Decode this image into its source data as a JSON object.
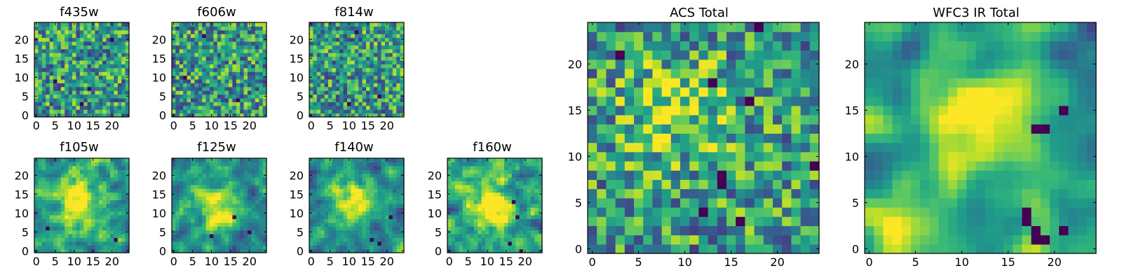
{
  "figure": {
    "colormap": "viridis",
    "background": "#ffffff",
    "frame_color": "#000000"
  },
  "chart_data": [
    {
      "type": "heatmap",
      "name": "f435w",
      "title": "f435w",
      "size": [
        25,
        25
      ],
      "seed": 11,
      "smooth": 0,
      "x_ticks": [
        0,
        5,
        10,
        15,
        20
      ],
      "y_ticks": [
        0,
        5,
        10,
        15,
        20
      ],
      "x_tick_labels": [
        "0",
        "5",
        "10",
        "15",
        "20"
      ],
      "y_tick_labels": [
        "0",
        "5",
        "10",
        "15",
        "20"
      ],
      "blobs": [],
      "dark_spots": [
        [
          14,
          7
        ],
        [
          5,
          9
        ],
        [
          12,
          3
        ],
        [
          20,
          20
        ]
      ]
    },
    {
      "type": "heatmap",
      "name": "f606w",
      "title": "f606w",
      "size": [
        25,
        25
      ],
      "seed": 22,
      "smooth": 0,
      "x_ticks": [
        0,
        5,
        10,
        15,
        20
      ],
      "y_ticks": [
        0,
        5,
        10,
        15,
        20
      ],
      "x_tick_labels": [
        "0",
        "5",
        "10",
        "15",
        "20"
      ],
      "y_tick_labels": [
        "0",
        "5",
        "10",
        "15",
        "20"
      ],
      "blobs": [],
      "dark_spots": [
        [
          3,
          10
        ],
        [
          17,
          4
        ],
        [
          8,
          21
        ]
      ]
    },
    {
      "type": "heatmap",
      "name": "f814w",
      "title": "f814w",
      "size": [
        25,
        25
      ],
      "seed": 33,
      "smooth": 0,
      "x_ticks": [
        0,
        5,
        10,
        15,
        20
      ],
      "y_ticks": [
        0,
        5,
        10,
        15,
        20
      ],
      "x_tick_labels": [
        "0",
        "5",
        "10",
        "15",
        "20"
      ],
      "y_tick_labels": [
        "0",
        "5",
        "10",
        "15",
        "20"
      ],
      "blobs": [],
      "dark_spots": [
        [
          10,
          3
        ],
        [
          18,
          5
        ],
        [
          12,
          22
        ]
      ]
    },
    {
      "type": "heatmap",
      "name": "f105w",
      "title": "f105w",
      "size": [
        25,
        25
      ],
      "seed": 44,
      "smooth": 1,
      "x_ticks": [
        0,
        5,
        10,
        15,
        20
      ],
      "y_ticks": [
        0,
        5,
        10,
        15,
        20
      ],
      "x_tick_labels": [
        "0",
        "5",
        "10",
        "15",
        "20"
      ],
      "y_tick_labels": [
        "0",
        "5",
        "10",
        "15",
        "20"
      ],
      "blobs": [
        [
          11,
          13,
          4,
          0.45
        ]
      ],
      "dark_spots": [
        [
          3,
          6
        ],
        [
          21,
          3
        ]
      ]
    },
    {
      "type": "heatmap",
      "name": "f125w",
      "title": "f125w",
      "size": [
        25,
        25
      ],
      "seed": 55,
      "smooth": 1,
      "x_ticks": [
        0,
        5,
        10,
        15,
        20
      ],
      "y_ticks": [
        0,
        5,
        10,
        15,
        20
      ],
      "x_tick_labels": [
        "0",
        "5",
        "10",
        "15",
        "20"
      ],
      "y_tick_labels": [
        "0",
        "5",
        "10",
        "15",
        "20"
      ],
      "blobs": [
        [
          12,
          13,
          4,
          0.5
        ]
      ],
      "dark_spots": [
        [
          16,
          9
        ],
        [
          20,
          5
        ],
        [
          10,
          4
        ]
      ]
    },
    {
      "type": "heatmap",
      "name": "f140w",
      "title": "f140w",
      "size": [
        25,
        25
      ],
      "seed": 66,
      "smooth": 1,
      "x_ticks": [
        0,
        5,
        10,
        15,
        20
      ],
      "y_ticks": [
        0,
        5,
        10,
        15,
        20
      ],
      "x_tick_labels": [
        "0",
        "5",
        "10",
        "15",
        "20"
      ],
      "y_tick_labels": [
        "0",
        "5",
        "10",
        "15",
        "20"
      ],
      "blobs": [
        [
          11,
          13,
          4,
          0.5
        ]
      ],
      "dark_spots": [
        [
          16,
          3
        ],
        [
          21,
          9
        ],
        [
          18,
          2
        ]
      ]
    },
    {
      "type": "heatmap",
      "name": "f160w",
      "title": "f160w",
      "size": [
        25,
        25
      ],
      "seed": 77,
      "smooth": 1,
      "x_ticks": [
        0,
        5,
        10,
        15,
        20
      ],
      "y_ticks": [
        0,
        5,
        10,
        15,
        20
      ],
      "x_tick_labels": [
        "0",
        "5",
        "10",
        "15",
        "20"
      ],
      "y_tick_labels": [
        "0",
        "5",
        "10",
        "15",
        "20"
      ],
      "blobs": [
        [
          11,
          12,
          4,
          0.5
        ]
      ],
      "dark_spots": [
        [
          17,
          13
        ],
        [
          18,
          9
        ],
        [
          16,
          2
        ],
        [
          19,
          0
        ]
      ]
    },
    {
      "type": "heatmap",
      "name": "acs-total",
      "title": "ACS Total",
      "size": [
        25,
        25
      ],
      "seed": 88,
      "smooth": 0,
      "x_ticks": [
        0,
        5,
        10,
        15,
        20
      ],
      "y_ticks": [
        0,
        5,
        10,
        15,
        20
      ],
      "x_tick_labels": [
        "0",
        "5",
        "10",
        "15",
        "20"
      ],
      "y_tick_labels": [
        "0",
        "5",
        "10",
        "15",
        "20"
      ],
      "blobs": [
        [
          9,
          15,
          4,
          0.3
        ]
      ],
      "dark_spots": [
        [
          14,
          7
        ],
        [
          14,
          8
        ],
        [
          3,
          21
        ],
        [
          18,
          24
        ],
        [
          13,
          18
        ],
        [
          17,
          16
        ],
        [
          12,
          4
        ],
        [
          16,
          3
        ],
        [
          24,
          9
        ]
      ]
    },
    {
      "type": "heatmap",
      "name": "wfc3-ir-total",
      "title": "WFC3 IR Total",
      "size": [
        25,
        25
      ],
      "seed": 99,
      "smooth": 2,
      "x_ticks": [
        0,
        5,
        10,
        15,
        20
      ],
      "y_ticks": [
        0,
        5,
        10,
        15,
        20
      ],
      "x_tick_labels": [
        "0",
        "5",
        "10",
        "15",
        "20"
      ],
      "y_tick_labels": [
        "0",
        "5",
        "10",
        "15",
        "20"
      ],
      "blobs": [
        [
          12,
          13,
          5,
          0.55
        ],
        [
          2,
          0,
          4,
          0.45
        ]
      ],
      "dark_spots": [
        [
          17,
          4
        ],
        [
          17,
          3
        ],
        [
          18,
          2
        ],
        [
          18,
          1
        ],
        [
          19,
          1
        ],
        [
          21,
          2
        ],
        [
          18,
          13
        ],
        [
          19,
          13
        ],
        [
          21,
          15
        ]
      ]
    }
  ]
}
